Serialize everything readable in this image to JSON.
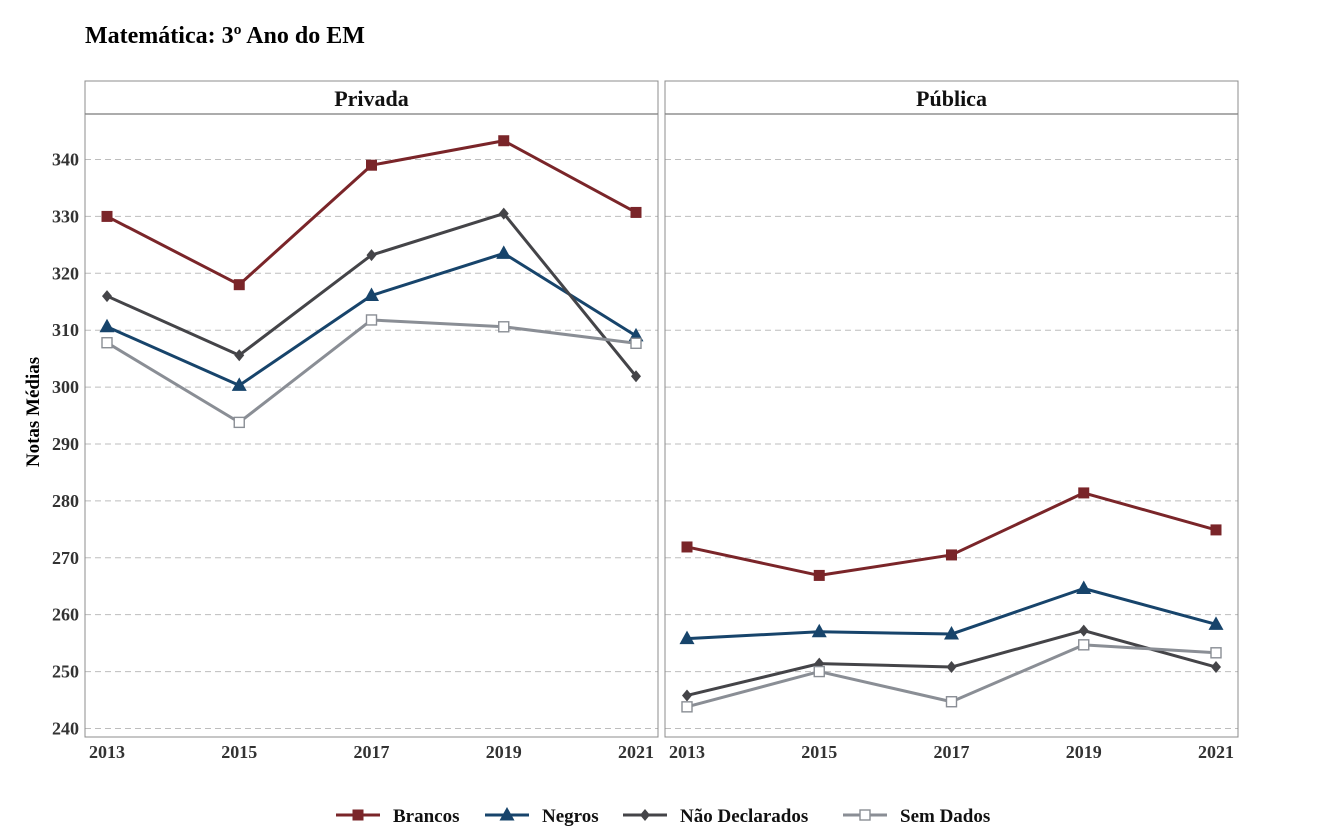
{
  "chart_data": {
    "type": "line",
    "title": "Matemática: 3º Ano do EM",
    "ylabel": "Notas Médias",
    "xlabel": "",
    "x": [
      "2013",
      "2015",
      "2017",
      "2019",
      "2021"
    ],
    "yticks": [
      240,
      250,
      260,
      270,
      280,
      290,
      300,
      310,
      320,
      330,
      340
    ],
    "ylim": [
      238.5,
      348
    ],
    "grid": true,
    "legend_position": "bottom",
    "panels": [
      {
        "label": "Privada",
        "series": [
          {
            "name": "Brancos",
            "values": [
              330.0,
              318.0,
              339.0,
              343.3,
              330.7
            ]
          },
          {
            "name": "Negros",
            "values": [
              310.6,
              300.3,
              316.1,
              323.5,
              309.0
            ]
          },
          {
            "name": "Não Declarados",
            "values": [
              316.0,
              305.6,
              323.2,
              330.5,
              301.9
            ]
          },
          {
            "name": "Sem Dados",
            "values": [
              307.8,
              293.8,
              311.8,
              310.6,
              307.7
            ]
          }
        ]
      },
      {
        "label": "Pública",
        "series": [
          {
            "name": "Brancos",
            "values": [
              271.9,
              266.9,
              270.5,
              281.4,
              274.9
            ]
          },
          {
            "name": "Negros",
            "values": [
              255.8,
              257.0,
              256.6,
              264.6,
              258.3
            ]
          },
          {
            "name": "Não Declarados",
            "values": [
              245.8,
              251.4,
              250.8,
              257.2,
              250.8
            ]
          },
          {
            "name": "Sem Dados",
            "values": [
              243.8,
              250.0,
              244.7,
              254.7,
              253.3
            ]
          }
        ]
      }
    ],
    "series_styles": [
      {
        "name": "Brancos",
        "color": "#7a2529",
        "marker": "filled-square"
      },
      {
        "name": "Negros",
        "color": "#17446b",
        "marker": "filled-triangle"
      },
      {
        "name": "Não Declarados",
        "color": "#444448",
        "marker": "filled-diamond"
      },
      {
        "name": "Sem Dados",
        "color": "#8a8e95",
        "marker": "open-square"
      }
    ]
  }
}
